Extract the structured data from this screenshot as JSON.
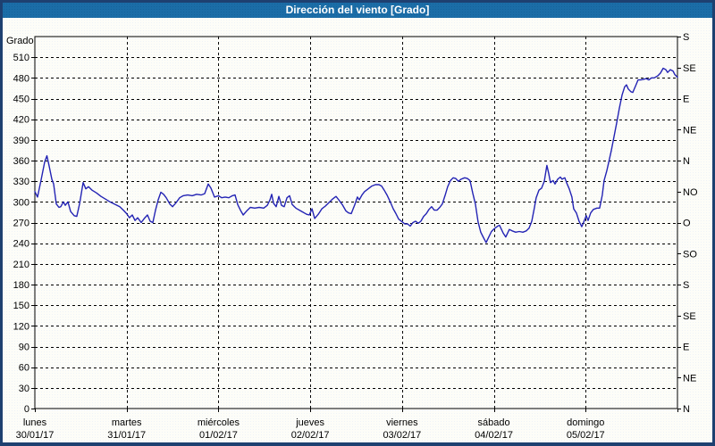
{
  "window": {
    "title": "Dirección del viento [Grado]"
  },
  "colors": {
    "title_bar": "#1b6da7",
    "title_bar_dot": "#15629b",
    "title_text": "#ffffff",
    "frame_border": "#1e4070",
    "body_background": "#fdfdf8",
    "body_dot": "#eef3f8",
    "plot_line": "#2323b4",
    "grid": "#000000"
  },
  "chart_data": {
    "type": "line",
    "title": "Dirección del viento [Grado]",
    "ylabel": "Grado",
    "ylim": [
      0,
      540
    ],
    "xlim_days": [
      0,
      7
    ],
    "grid": "dashed",
    "legend": "none",
    "y_ticks_left": [
      0,
      30,
      60,
      90,
      120,
      150,
      180,
      210,
      240,
      270,
      300,
      330,
      360,
      390,
      420,
      450,
      480,
      510
    ],
    "y_ticks_right": [
      {
        "value": 0,
        "label": "N"
      },
      {
        "value": 45,
        "label": "NE"
      },
      {
        "value": 90,
        "label": "E"
      },
      {
        "value": 135,
        "label": "SE"
      },
      {
        "value": 180,
        "label": "S"
      },
      {
        "value": 225,
        "label": "SO"
      },
      {
        "value": 270,
        "label": "O"
      },
      {
        "value": 315,
        "label": "NO"
      },
      {
        "value": 360,
        "label": "N"
      },
      {
        "value": 405,
        "label": "NE"
      },
      {
        "value": 450,
        "label": "E"
      },
      {
        "value": 495,
        "label": "SE"
      },
      {
        "value": 540,
        "label": "S"
      }
    ],
    "x_categories": [
      {
        "day": "lunes",
        "date": "30/01/17",
        "position": 0
      },
      {
        "day": "martes",
        "date": "31/01/17",
        "position": 1
      },
      {
        "day": "miércoles",
        "date": "01/02/17",
        "position": 2
      },
      {
        "day": "jueves",
        "date": "02/02/17",
        "position": 3
      },
      {
        "day": "viernes",
        "date": "03/02/17",
        "position": 4
      },
      {
        "day": "sábado",
        "date": "04/02/17",
        "position": 5
      },
      {
        "day": "domingo",
        "date": "05/02/17",
        "position": 6
      }
    ],
    "series": [
      {
        "name": "Dirección del viento",
        "color": "#2323b4",
        "x_unit": "days_from_start",
        "points_day_deg": [
          [
            0.0,
            315
          ],
          [
            0.029,
            307
          ],
          [
            0.068,
            332
          ],
          [
            0.107,
            358
          ],
          [
            0.131,
            367
          ],
          [
            0.156,
            352
          ],
          [
            0.185,
            333
          ],
          [
            0.204,
            326
          ],
          [
            0.234,
            297
          ],
          [
            0.263,
            292
          ],
          [
            0.282,
            293
          ],
          [
            0.311,
            300
          ],
          [
            0.331,
            295
          ],
          [
            0.36,
            300
          ],
          [
            0.389,
            286
          ],
          [
            0.428,
            280
          ],
          [
            0.457,
            279
          ],
          [
            0.487,
            297
          ],
          [
            0.526,
            328
          ],
          [
            0.555,
            319
          ],
          [
            0.584,
            322
          ],
          [
            0.623,
            317
          ],
          [
            0.672,
            313
          ],
          [
            0.72,
            308
          ],
          [
            0.769,
            304
          ],
          [
            0.818,
            300
          ],
          [
            0.866,
            297
          ],
          [
            0.925,
            293
          ],
          [
            0.964,
            288
          ],
          [
            1.0,
            283
          ],
          [
            1.03,
            277
          ],
          [
            1.061,
            281
          ],
          [
            1.091,
            273
          ],
          [
            1.12,
            277
          ],
          [
            1.159,
            270
          ],
          [
            1.198,
            277
          ],
          [
            1.227,
            281
          ],
          [
            1.256,
            272
          ],
          [
            1.285,
            270
          ],
          [
            1.314,
            288
          ],
          [
            1.344,
            303
          ],
          [
            1.373,
            314
          ],
          [
            1.402,
            311
          ],
          [
            1.431,
            306
          ],
          [
            1.47,
            297
          ],
          [
            1.5,
            293
          ],
          [
            1.539,
            299
          ],
          [
            1.577,
            306
          ],
          [
            1.616,
            309
          ],
          [
            1.665,
            310
          ],
          [
            1.714,
            309
          ],
          [
            1.762,
            311
          ],
          [
            1.811,
            310
          ],
          [
            1.85,
            312
          ],
          [
            1.889,
            326
          ],
          [
            1.918,
            320
          ],
          [
            1.957,
            307
          ],
          [
            2.0,
            309
          ],
          [
            2.035,
            306
          ],
          [
            2.074,
            307
          ],
          [
            2.113,
            306
          ],
          [
            2.152,
            309
          ],
          [
            2.181,
            310
          ],
          [
            2.21,
            296
          ],
          [
            2.239,
            288
          ],
          [
            2.269,
            281
          ],
          [
            2.308,
            287
          ],
          [
            2.347,
            292
          ],
          [
            2.395,
            291
          ],
          [
            2.444,
            292
          ],
          [
            2.493,
            291
          ],
          [
            2.532,
            295
          ],
          [
            2.561,
            303
          ],
          [
            2.58,
            311
          ],
          [
            2.6,
            298
          ],
          [
            2.629,
            293
          ],
          [
            2.658,
            308
          ],
          [
            2.687,
            295
          ],
          [
            2.716,
            293
          ],
          [
            2.746,
            306
          ],
          [
            2.775,
            309
          ],
          [
            2.804,
            296
          ],
          [
            2.843,
            291
          ],
          [
            2.882,
            288
          ],
          [
            2.921,
            285
          ],
          [
            2.96,
            282
          ],
          [
            2.989,
            281
          ],
          [
            3.019,
            290
          ],
          [
            3.048,
            276
          ],
          [
            3.087,
            282
          ],
          [
            3.126,
            290
          ],
          [
            3.165,
            294
          ],
          [
            3.203,
            299
          ],
          [
            3.242,
            304
          ],
          [
            3.281,
            308
          ],
          [
            3.31,
            303
          ],
          [
            3.349,
            296
          ],
          [
            3.388,
            287
          ],
          [
            3.417,
            284
          ],
          [
            3.446,
            283
          ],
          [
            3.485,
            296
          ],
          [
            3.514,
            307
          ],
          [
            3.534,
            303
          ],
          [
            3.563,
            310
          ],
          [
            3.592,
            315
          ],
          [
            3.631,
            319
          ],
          [
            3.67,
            323
          ],
          [
            3.709,
            325
          ],
          [
            3.748,
            325
          ],
          [
            3.777,
            323
          ],
          [
            3.806,
            317
          ],
          [
            3.836,
            310
          ],
          [
            3.875,
            299
          ],
          [
            3.904,
            290
          ],
          [
            3.933,
            283
          ],
          [
            3.962,
            275
          ],
          [
            4.001,
            271
          ],
          [
            4.03,
            268
          ],
          [
            4.059,
            268
          ],
          [
            4.089,
            265
          ],
          [
            4.118,
            270
          ],
          [
            4.147,
            272
          ],
          [
            4.176,
            269
          ],
          [
            4.205,
            272
          ],
          [
            4.235,
            279
          ],
          [
            4.264,
            283
          ],
          [
            4.293,
            289
          ],
          [
            4.322,
            293
          ],
          [
            4.351,
            288
          ],
          [
            4.381,
            288
          ],
          [
            4.41,
            292
          ],
          [
            4.439,
            297
          ],
          [
            4.468,
            309
          ],
          [
            4.497,
            322
          ],
          [
            4.527,
            331
          ],
          [
            4.556,
            335
          ],
          [
            4.585,
            334
          ],
          [
            4.614,
            330
          ],
          [
            4.643,
            333
          ],
          [
            4.682,
            335
          ],
          [
            4.711,
            334
          ],
          [
            4.74,
            331
          ],
          [
            4.77,
            313
          ],
          [
            4.799,
            297
          ],
          [
            4.828,
            271
          ],
          [
            4.857,
            256
          ],
          [
            4.887,
            248
          ],
          [
            4.916,
            241
          ],
          [
            4.945,
            249
          ],
          [
            4.974,
            257
          ],
          [
            5.004,
            261
          ],
          [
            5.043,
            265
          ],
          [
            5.062,
            266
          ],
          [
            5.101,
            255
          ],
          [
            5.13,
            249
          ],
          [
            5.169,
            260
          ],
          [
            5.199,
            258
          ],
          [
            5.238,
            256
          ],
          [
            5.277,
            257
          ],
          [
            5.316,
            256
          ],
          [
            5.354,
            258
          ],
          [
            5.384,
            262
          ],
          [
            5.413,
            272
          ],
          [
            5.442,
            292
          ],
          [
            5.461,
            306
          ],
          [
            5.491,
            317
          ],
          [
            5.52,
            320
          ],
          [
            5.549,
            330
          ],
          [
            5.578,
            353
          ],
          [
            5.598,
            341
          ],
          [
            5.617,
            328
          ],
          [
            5.646,
            331
          ],
          [
            5.666,
            326
          ],
          [
            5.695,
            333
          ],
          [
            5.724,
            336
          ],
          [
            5.743,
            333
          ],
          [
            5.773,
            335
          ],
          [
            5.792,
            328
          ],
          [
            5.821,
            319
          ],
          [
            5.85,
            307
          ],
          [
            5.87,
            290
          ],
          [
            5.899,
            284
          ],
          [
            5.928,
            272
          ],
          [
            5.957,
            264
          ],
          [
            5.977,
            270
          ],
          [
            6.006,
            280
          ],
          [
            6.026,
            273
          ],
          [
            6.055,
            284
          ],
          [
            6.084,
            289
          ],
          [
            6.123,
            291
          ],
          [
            6.152,
            291
          ],
          [
            6.181,
            310
          ],
          [
            6.201,
            331
          ],
          [
            6.23,
            345
          ],
          [
            6.25,
            357
          ],
          [
            6.279,
            374
          ],
          [
            6.308,
            394
          ],
          [
            6.337,
            414
          ],
          [
            6.367,
            436
          ],
          [
            6.396,
            455
          ],
          [
            6.425,
            467
          ],
          [
            6.445,
            470
          ],
          [
            6.464,
            464
          ],
          [
            6.493,
            460
          ],
          [
            6.513,
            459
          ],
          [
            6.542,
            468
          ],
          [
            6.571,
            477
          ],
          [
            6.6,
            477
          ],
          [
            6.63,
            478
          ],
          [
            6.659,
            479
          ],
          [
            6.688,
            477
          ],
          [
            6.717,
            480
          ],
          [
            6.747,
            480
          ],
          [
            6.786,
            483
          ],
          [
            6.815,
            487
          ],
          [
            6.844,
            494
          ],
          [
            6.873,
            492
          ],
          [
            6.893,
            488
          ],
          [
            6.922,
            492
          ],
          [
            6.951,
            490
          ],
          [
            6.971,
            485
          ],
          [
            7.0,
            481
          ]
        ]
      }
    ]
  }
}
